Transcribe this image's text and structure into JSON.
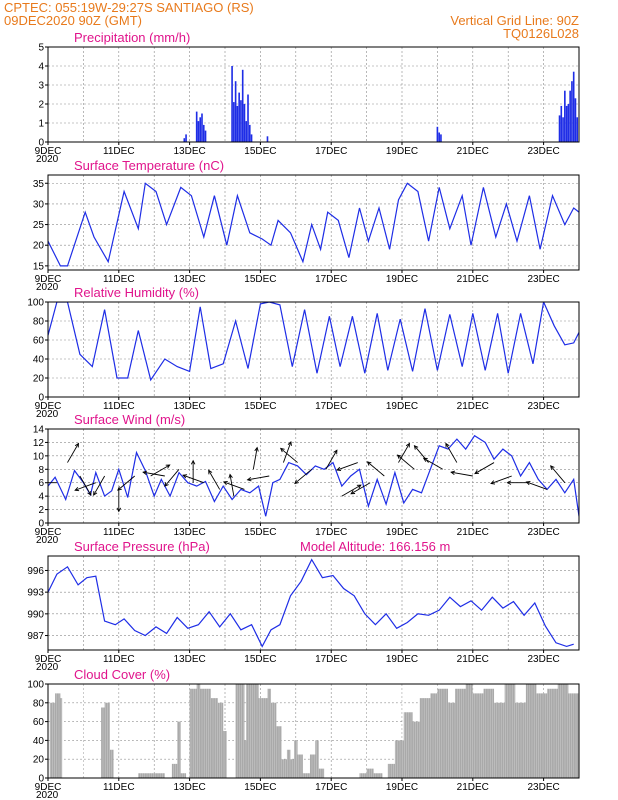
{
  "header": {
    "line1": "CPTEC:   055:19W-29:27S   SANTIAGO (RS)",
    "line2": "09DEC2020 90Z (GMT)",
    "grid_note": "Vertical Grid Line: 90Z",
    "run_id": "TQ0126L028"
  },
  "colors": {
    "header": "#e87a1c",
    "title": "#e0148c",
    "series": "#1e2de6",
    "bar": "#1e2de6",
    "cloud": "#a9a9a9",
    "arrow": "#000000"
  },
  "x_axis": {
    "start_day": 9,
    "end_day": 24,
    "tick_days": [
      9,
      11,
      13,
      15,
      17,
      19,
      21,
      23
    ],
    "tick_labels": [
      "9DEC",
      "11DEC",
      "13DEC",
      "15DEC",
      "17DEC",
      "19DEC",
      "21DEC",
      "23DEC"
    ],
    "year_mark": "2020"
  },
  "chart_data": [
    {
      "id": "precip",
      "type": "bar",
      "title": "Precipitation (mm/h)",
      "ylim": [
        0,
        5
      ],
      "yticks": [
        0,
        1,
        2,
        3,
        4,
        5
      ],
      "x": [
        12.85,
        12.9,
        13.2,
        13.25,
        13.3,
        13.35,
        13.4,
        13.45,
        14.2,
        14.25,
        14.3,
        14.35,
        14.4,
        14.45,
        14.5,
        14.55,
        14.6,
        14.65,
        14.7,
        14.75,
        15.2,
        20.0,
        20.05,
        20.1,
        23.45,
        23.5,
        23.55,
        23.6,
        23.65,
        23.7,
        23.75,
        23.8,
        23.85,
        23.9,
        23.95
      ],
      "values": [
        0.2,
        0.4,
        1.6,
        1.1,
        1.3,
        1.5,
        0.9,
        0.6,
        4.0,
        2.1,
        3.2,
        1.9,
        2.6,
        2.2,
        3.8,
        2.0,
        1.1,
        2.5,
        0.9,
        0.4,
        0.3,
        0.8,
        0.5,
        0.4,
        1.4,
        1.9,
        1.3,
        2.7,
        1.9,
        2.0,
        2.7,
        3.2,
        3.7,
        2.3,
        1.3
      ]
    },
    {
      "id": "temp",
      "type": "line",
      "title": "Surface Temperature (nC)",
      "ylim": [
        14,
        37
      ],
      "yticks": [
        15,
        20,
        25,
        30,
        35
      ],
      "x": [
        9.0,
        9.35,
        9.55,
        10.05,
        10.3,
        10.7,
        11.15,
        11.55,
        11.75,
        12.05,
        12.35,
        12.75,
        13.05,
        13.4,
        13.7,
        14.05,
        14.35,
        14.7,
        15.05,
        15.3,
        15.5,
        15.85,
        16.2,
        16.45,
        16.7,
        16.9,
        17.2,
        17.5,
        17.8,
        18.05,
        18.35,
        18.65,
        18.9,
        19.15,
        19.45,
        19.75,
        20.05,
        20.35,
        20.7,
        20.95,
        21.3,
        21.65,
        21.95,
        22.25,
        22.6,
        22.9,
        23.25,
        23.6,
        23.85,
        24.0
      ],
      "values": [
        21,
        15,
        15,
        28,
        22,
        16,
        33,
        24,
        35,
        33,
        25,
        34,
        32,
        22,
        32,
        20,
        32,
        23,
        21.5,
        20,
        26,
        23,
        16,
        25,
        19,
        28,
        26,
        17,
        29,
        21,
        29,
        19,
        31,
        35,
        33,
        21,
        34,
        24,
        32,
        20,
        34,
        22,
        30,
        21,
        32,
        19,
        32,
        25,
        29,
        28
      ]
    },
    {
      "id": "rh",
      "type": "line",
      "title": "Relative Humidity (%)",
      "ylim": [
        0,
        100
      ],
      "yticks": [
        0,
        20,
        40,
        60,
        80,
        100
      ],
      "x": [
        9.0,
        9.25,
        9.55,
        9.9,
        10.25,
        10.6,
        10.95,
        11.25,
        11.55,
        11.9,
        12.3,
        12.65,
        13.0,
        13.3,
        13.6,
        13.95,
        14.3,
        14.65,
        15.0,
        15.25,
        15.55,
        15.9,
        16.25,
        16.6,
        16.95,
        17.25,
        17.6,
        17.95,
        18.3,
        18.6,
        18.95,
        19.3,
        19.65,
        20.0,
        20.35,
        20.7,
        21.0,
        21.35,
        21.7,
        22.0,
        22.35,
        22.7,
        23.0,
        23.3,
        23.6,
        23.85,
        24.0
      ],
      "values": [
        65,
        100,
        100,
        45,
        32,
        92,
        20,
        20,
        70,
        18,
        40,
        32,
        27,
        95,
        30,
        35,
        80,
        30,
        98,
        100,
        97,
        32,
        92,
        25,
        85,
        32,
        85,
        25,
        88,
        28,
        82,
        27,
        93,
        28,
        87,
        32,
        88,
        28,
        88,
        25,
        88,
        35,
        100,
        75,
        55,
        57,
        68
      ]
    },
    {
      "id": "wind",
      "type": "line",
      "title": "Surface Wind (m/s)",
      "ylim": [
        0,
        14
      ],
      "yticks": [
        0,
        2,
        4,
        6,
        8,
        10,
        12,
        14
      ],
      "x": [
        9.0,
        9.2,
        9.5,
        9.75,
        10.0,
        10.2,
        10.35,
        10.6,
        10.8,
        11.0,
        11.25,
        11.5,
        11.75,
        12.0,
        12.2,
        12.45,
        12.7,
        12.95,
        13.2,
        13.45,
        13.7,
        13.95,
        14.2,
        14.45,
        14.7,
        14.95,
        15.15,
        15.35,
        15.55,
        15.8,
        16.05,
        16.3,
        16.55,
        16.8,
        17.05,
        17.3,
        17.55,
        17.8,
        18.05,
        18.3,
        18.55,
        18.8,
        19.05,
        19.3,
        19.55,
        19.8,
        20.05,
        20.3,
        20.55,
        20.8,
        21.05,
        21.35,
        21.6,
        21.85,
        22.1,
        22.35,
        22.6,
        22.85,
        23.1,
        23.35,
        23.6,
        23.85,
        24.0
      ],
      "values": [
        5.5,
        6.8,
        3.5,
        7.8,
        6,
        4.2,
        7.5,
        4,
        4.8,
        8,
        3.8,
        10.5,
        7.8,
        4,
        6.5,
        4,
        7.5,
        6,
        5.5,
        6.2,
        3.2,
        5.5,
        3.5,
        5,
        4.5,
        5.5,
        1,
        6,
        6.5,
        9,
        8.5,
        7.2,
        8.5,
        8,
        9,
        5.5,
        7,
        8,
        2.5,
        6.5,
        2.8,
        7.5,
        3,
        5,
        4.5,
        8,
        11.5,
        11,
        12.5,
        11,
        13,
        12,
        9.5,
        11,
        10,
        7,
        9,
        6.5,
        5,
        6.5,
        4.5,
        6.5,
        1
      ]
    },
    {
      "id": "pres",
      "type": "line",
      "title": "Surface Pressure (hPa)",
      "annotation": "Model Altitude: 166.156  m",
      "ylim": [
        985,
        998
      ],
      "yticks": [
        987,
        990,
        993,
        996
      ],
      "x": [
        9.0,
        9.25,
        9.55,
        9.85,
        10.1,
        10.35,
        10.6,
        10.9,
        11.15,
        11.45,
        11.75,
        12.05,
        12.35,
        12.65,
        12.95,
        13.25,
        13.55,
        13.85,
        14.15,
        14.45,
        14.75,
        15.05,
        15.3,
        15.55,
        15.85,
        16.15,
        16.45,
        16.75,
        17.05,
        17.35,
        17.65,
        17.95,
        18.25,
        18.55,
        18.85,
        19.15,
        19.45,
        19.75,
        20.05,
        20.35,
        20.65,
        20.95,
        21.25,
        21.55,
        21.85,
        22.15,
        22.45,
        22.75,
        23.05,
        23.35,
        23.65,
        23.85
      ],
      "values": [
        993,
        995.5,
        996.5,
        994,
        995,
        995.2,
        989,
        988.5,
        989.3,
        987.7,
        987,
        988.2,
        987.3,
        989.5,
        988,
        988.5,
        990.3,
        988.2,
        990,
        987.8,
        988.5,
        985.5,
        987.8,
        988.5,
        992.5,
        994.5,
        997.5,
        995,
        995.3,
        993.5,
        992.5,
        990,
        988.5,
        990,
        988,
        988.8,
        990,
        989.8,
        990.5,
        992.3,
        991,
        991.8,
        990.5,
        992.3,
        990.8,
        991.7,
        989.8,
        991.5,
        988.3,
        986,
        985.5,
        985.8
      ]
    },
    {
      "id": "cloud",
      "type": "area",
      "title": "Cloud Cover (%)",
      "ylim": [
        0,
        100
      ],
      "yticks": [
        0,
        20,
        40,
        60,
        80,
        100
      ],
      "x": [
        9.0,
        9.05,
        9.2,
        9.35,
        9.4,
        9.6,
        9.75,
        9.95,
        10.1,
        10.35,
        10.5,
        10.6,
        10.75,
        10.85,
        11.05,
        11.35,
        11.55,
        12.1,
        12.3,
        12.5,
        12.65,
        12.75,
        12.9,
        13.0,
        13.2,
        13.3,
        13.6,
        13.8,
        13.95,
        14.05,
        14.3,
        14.35,
        14.55,
        14.6,
        14.85,
        14.95,
        15.2,
        15.3,
        15.45,
        15.6,
        15.75,
        15.85,
        15.95,
        16.05,
        16.2,
        16.4,
        16.55,
        16.65,
        16.8,
        16.9,
        17.05,
        17.3,
        17.5,
        17.8,
        18.0,
        18.2,
        18.45,
        18.6,
        18.8,
        19.05,
        19.3,
        19.5,
        19.8,
        20.0,
        20.3,
        20.5,
        20.8,
        21.0,
        21.3,
        21.6,
        21.9,
        22.2,
        22.5,
        22.8,
        23.1,
        23.4,
        23.7,
        24.0
      ],
      "values": [
        0,
        80,
        90,
        85,
        0,
        0,
        0,
        0,
        0,
        0,
        75,
        80,
        30,
        0,
        0,
        0,
        5,
        5,
        0,
        15,
        60,
        5,
        0,
        95,
        100,
        95,
        85,
        80,
        50,
        0,
        100,
        100,
        40,
        100,
        100,
        85,
        95,
        80,
        55,
        20,
        30,
        20,
        40,
        25,
        5,
        25,
        40,
        10,
        0,
        0,
        0,
        0,
        0,
        5,
        10,
        5,
        0,
        15,
        40,
        70,
        60,
        85,
        90,
        95,
        80,
        95,
        100,
        90,
        95,
        80,
        100,
        80,
        100,
        90,
        95,
        100,
        90,
        100
      ]
    },
    {
      "id": "wind_arrows",
      "type": "vector",
      "x": [
        9.25,
        9.55,
        9.9,
        10.35,
        10.6,
        11.0,
        11.45,
        11.9,
        12.3,
        12.7,
        13.1,
        13.4,
        13.85,
        14.25,
        14.55,
        14.8,
        15.25,
        15.65,
        16.05,
        16.45,
        16.85,
        17.3,
        17.75,
        18.1,
        18.5,
        18.9,
        19.35,
        19.75,
        20.15,
        20.55,
        21.0,
        21.6,
        22.1,
        22.6,
        23.1,
        23.6
      ],
      "values": [
        6,
        9,
        7,
        6,
        7,
        5,
        7,
        7,
        7,
        8,
        6,
        6,
        5,
        4,
        5,
        8,
        7,
        9,
        9,
        8,
        8,
        4,
        9,
        6,
        7,
        9,
        8,
        9,
        8,
        9,
        7,
        9,
        7,
        6,
        5,
        6
      ],
      "dir": [
        180,
        60,
        300,
        200,
        240,
        270,
        220,
        30,
        170,
        230,
        90,
        160,
        120,
        100,
        160,
        80,
        190,
        70,
        140,
        220,
        60,
        30,
        200,
        210,
        140,
        60,
        140,
        130,
        150,
        120,
        170,
        210,
        200,
        180,
        160,
        130
      ]
    }
  ]
}
